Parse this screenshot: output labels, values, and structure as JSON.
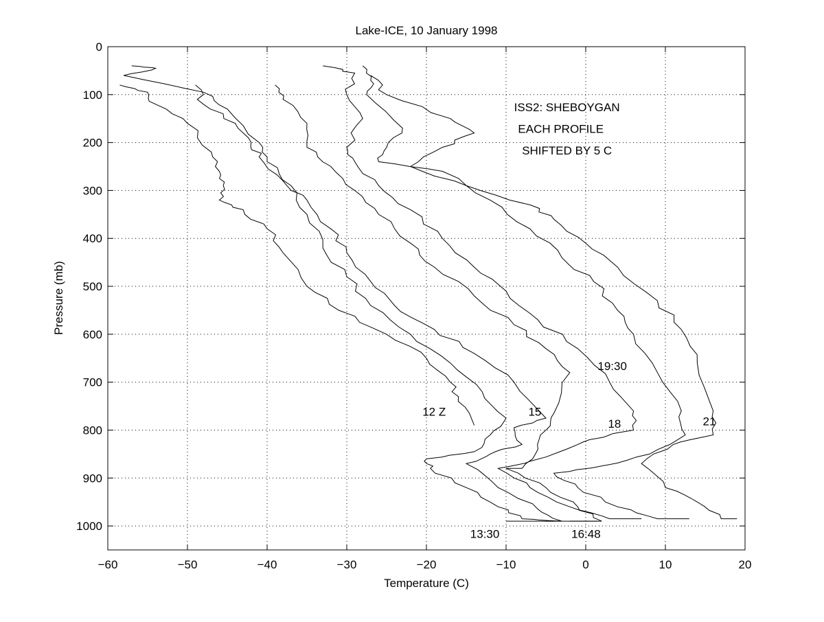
{
  "chart_data": {
    "type": "line",
    "title": "Lake-ICE, 10 January 1998",
    "xlabel": "Temperature (C)",
    "ylabel": "Pressure (mb)",
    "xlim": [
      -60,
      20
    ],
    "ylim": [
      0,
      1050
    ],
    "y_reversed": true,
    "grid": true,
    "xticks": [
      -60,
      -50,
      -40,
      -30,
      -20,
      -10,
      0,
      10,
      20
    ],
    "yticks": [
      0,
      100,
      200,
      300,
      400,
      500,
      600,
      700,
      800,
      900,
      1000
    ],
    "series": [
      {
        "name": "12 Z",
        "points": [
          [
            -58.5,
            80
          ],
          [
            -55,
            95
          ],
          [
            -54,
            120
          ],
          [
            -50,
            160
          ],
          [
            -47,
            220
          ],
          [
            -46,
            260
          ],
          [
            -45.5,
            290
          ],
          [
            -46,
            320
          ],
          [
            -43,
            340
          ],
          [
            -40,
            380
          ],
          [
            -38,
            430
          ],
          [
            -35,
            500
          ],
          [
            -31,
            550
          ],
          [
            -25,
            600
          ],
          [
            -20,
            650
          ],
          [
            -17,
            700
          ],
          [
            -16,
            740
          ],
          [
            -14,
            790
          ]
        ]
      },
      {
        "name": "13:30",
        "points": [
          [
            -57,
            40
          ],
          [
            -54,
            45
          ],
          [
            -58,
            60
          ],
          [
            -48,
            95
          ],
          [
            -45,
            130
          ],
          [
            -41,
            200
          ],
          [
            -40,
            240
          ],
          [
            -37,
            290
          ],
          [
            -35,
            350
          ],
          [
            -33,
            420
          ],
          [
            -30,
            480
          ],
          [
            -27,
            540
          ],
          [
            -22,
            600
          ],
          [
            -17,
            660
          ],
          [
            -13,
            720
          ],
          [
            -10,
            775
          ],
          [
            -12,
            810
          ],
          [
            -14,
            845
          ],
          [
            -20,
            860
          ],
          [
            -19.5,
            880
          ],
          [
            -15,
            920
          ],
          [
            -11,
            960
          ],
          [
            -8,
            985
          ],
          [
            -3,
            990
          ],
          [
            -10,
            990
          ]
        ]
      },
      {
        "name": "15",
        "points": [
          [
            -49,
            80
          ],
          [
            -48,
            120
          ],
          [
            -44,
            160
          ],
          [
            -42,
            200
          ],
          [
            -41,
            230
          ],
          [
            -38,
            280
          ],
          [
            -35,
            320
          ],
          [
            -32,
            380
          ],
          [
            -30,
            430
          ],
          [
            -27,
            490
          ],
          [
            -24,
            540
          ],
          [
            -19,
            590
          ],
          [
            -14,
            640
          ],
          [
            -9,
            700
          ],
          [
            -5,
            775
          ],
          [
            -9,
            795
          ],
          [
            -8,
            830
          ],
          [
            -12,
            850
          ],
          [
            -15,
            870
          ],
          [
            -11,
            920
          ],
          [
            -6,
            965
          ],
          [
            -3,
            990
          ],
          [
            1.5,
            990
          ],
          [
            -5,
            990
          ]
        ]
      },
      {
        "name": "16:48",
        "points": [
          [
            -39,
            80
          ],
          [
            -38,
            110
          ],
          [
            -35,
            160
          ],
          [
            -35,
            210
          ],
          [
            -32,
            250
          ],
          [
            -29,
            300
          ],
          [
            -26,
            350
          ],
          [
            -22,
            410
          ],
          [
            -19,
            460
          ],
          [
            -14,
            520
          ],
          [
            -9,
            580
          ],
          [
            -5,
            630
          ],
          [
            -2,
            680
          ],
          [
            -4,
            765
          ],
          [
            -5,
            800
          ],
          [
            -6,
            840
          ],
          [
            -8,
            880
          ],
          [
            -10,
            880
          ],
          [
            -5,
            920
          ],
          [
            -1,
            960
          ],
          [
            2,
            990
          ],
          [
            -2,
            990
          ]
        ]
      },
      {
        "name": "18",
        "points": [
          [
            -33,
            40
          ],
          [
            -29,
            55
          ],
          [
            -30,
            100
          ],
          [
            -28,
            150
          ],
          [
            -30,
            210
          ],
          [
            -29,
            240
          ],
          [
            -26,
            290
          ],
          [
            -22,
            340
          ],
          [
            -18,
            400
          ],
          [
            -14,
            460
          ],
          [
            -10,
            510
          ],
          [
            -6,
            570
          ],
          [
            -1,
            630
          ],
          [
            3,
            700
          ],
          [
            6,
            760
          ],
          [
            6,
            800
          ],
          [
            3,
            810
          ],
          [
            -1,
            830
          ],
          [
            -7,
            865
          ],
          [
            -11,
            880
          ],
          [
            -7,
            920
          ],
          [
            -2,
            960
          ],
          [
            3,
            985
          ],
          [
            7,
            985
          ]
        ]
      },
      {
        "name": "19:30",
        "points": [
          [
            -28,
            40
          ],
          [
            -27,
            70
          ],
          [
            -27.5,
            100
          ],
          [
            -23,
            170
          ],
          [
            -25,
            210
          ],
          [
            -26,
            240
          ],
          [
            -18,
            260
          ],
          [
            -12,
            320
          ],
          [
            -7,
            380
          ],
          [
            -3,
            440
          ],
          [
            1,
            490
          ],
          [
            4,
            550
          ],
          [
            6,
            600
          ],
          [
            9,
            680
          ],
          [
            12,
            760
          ],
          [
            12.5,
            810
          ],
          [
            8,
            850
          ],
          [
            2,
            875
          ],
          [
            -4,
            890
          ],
          [
            -1,
            920
          ],
          [
            4,
            960
          ],
          [
            9,
            985
          ],
          [
            13,
            985
          ]
        ]
      },
      {
        "name": "21",
        "points": [
          [
            -27,
            60
          ],
          [
            -25,
            100
          ],
          [
            -17,
            150
          ],
          [
            -14,
            180
          ],
          [
            -18,
            210
          ],
          [
            -22,
            250
          ],
          [
            -15,
            290
          ],
          [
            -7,
            330
          ],
          [
            -4,
            360
          ],
          [
            0,
            410
          ],
          [
            4,
            460
          ],
          [
            9,
            530
          ],
          [
            12,
            590
          ],
          [
            14,
            660
          ],
          [
            16,
            760
          ],
          [
            16,
            810
          ],
          [
            11,
            830
          ],
          [
            7,
            870
          ],
          [
            10,
            920
          ],
          [
            14,
            950
          ],
          [
            17,
            985
          ],
          [
            19,
            985
          ]
        ]
      }
    ],
    "annotations": [
      {
        "text": "ISS2: SHEBOYGAN",
        "x": -9,
        "y": 135
      },
      {
        "text": "EACH PROFILE",
        "x": -8.5,
        "y": 180
      },
      {
        "text": "SHIFTED BY 5 C",
        "x": -8,
        "y": 225
      },
      {
        "text": "12 Z",
        "x": -20.5,
        "y": 770
      },
      {
        "text": "13:30",
        "x": -14.5,
        "y": 1025
      },
      {
        "text": "15",
        "x": -7.2,
        "y": 770
      },
      {
        "text": "16:48",
        "x": -1.8,
        "y": 1025
      },
      {
        "text": "18",
        "x": 2.8,
        "y": 795
      },
      {
        "text": "19:30",
        "x": 1.5,
        "y": 675
      },
      {
        "text": "21",
        "x": 14.7,
        "y": 790
      }
    ]
  }
}
